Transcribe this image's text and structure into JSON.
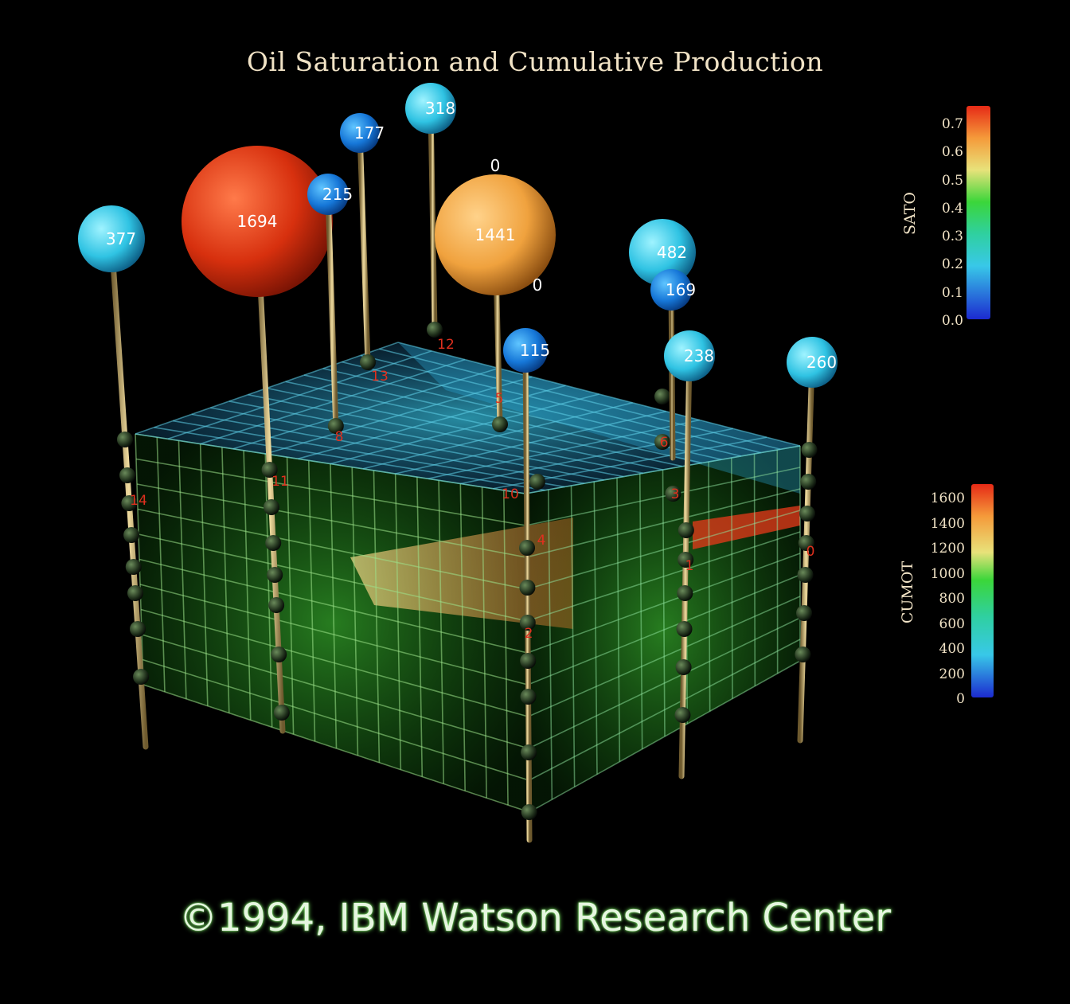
{
  "title": "Oil Saturation and Cumulative Production",
  "copyright": "©1994, IBM Watson Research Center",
  "chart_data": {
    "type": "scatter",
    "colorbars": [
      {
        "label": "SATO",
        "ticks": [
          "0.7",
          "0.6",
          "0.5",
          "0.4",
          "0.3",
          "0.2",
          "0.1",
          "0.0"
        ],
        "range": [
          0.0,
          0.75
        ]
      },
      {
        "label": "CUMOT",
        "ticks": [
          "1600",
          "1400",
          "1200",
          "1000",
          "800",
          "600",
          "400",
          "200",
          "0"
        ],
        "range": [
          0,
          1700
        ]
      }
    ],
    "wells": [
      {
        "id": "14",
        "cumot": "377"
      },
      {
        "id": "11",
        "cumot": "1694"
      },
      {
        "id": "8",
        "cumot": "215"
      },
      {
        "id": "13",
        "cumot": "177"
      },
      {
        "id": "12",
        "cumot": "318"
      },
      {
        "id": "5",
        "cumot": "1441",
        "top_label": "0"
      },
      {
        "id": "10",
        "cumot": "0"
      },
      {
        "id": "2",
        "cumot": "115"
      },
      {
        "id": "6",
        "cumot": "482"
      },
      {
        "id": "3",
        "cumot": "169"
      },
      {
        "id": "1",
        "cumot": "238"
      },
      {
        "id": "0",
        "cumot": "260"
      },
      {
        "id": "4",
        "cumot": ""
      }
    ],
    "colors": {
      "cube_green": "#3fd23a",
      "cube_blue": "#2aa8d8",
      "pipe": "#c9b27a",
      "well_label": "#e0301e"
    }
  }
}
